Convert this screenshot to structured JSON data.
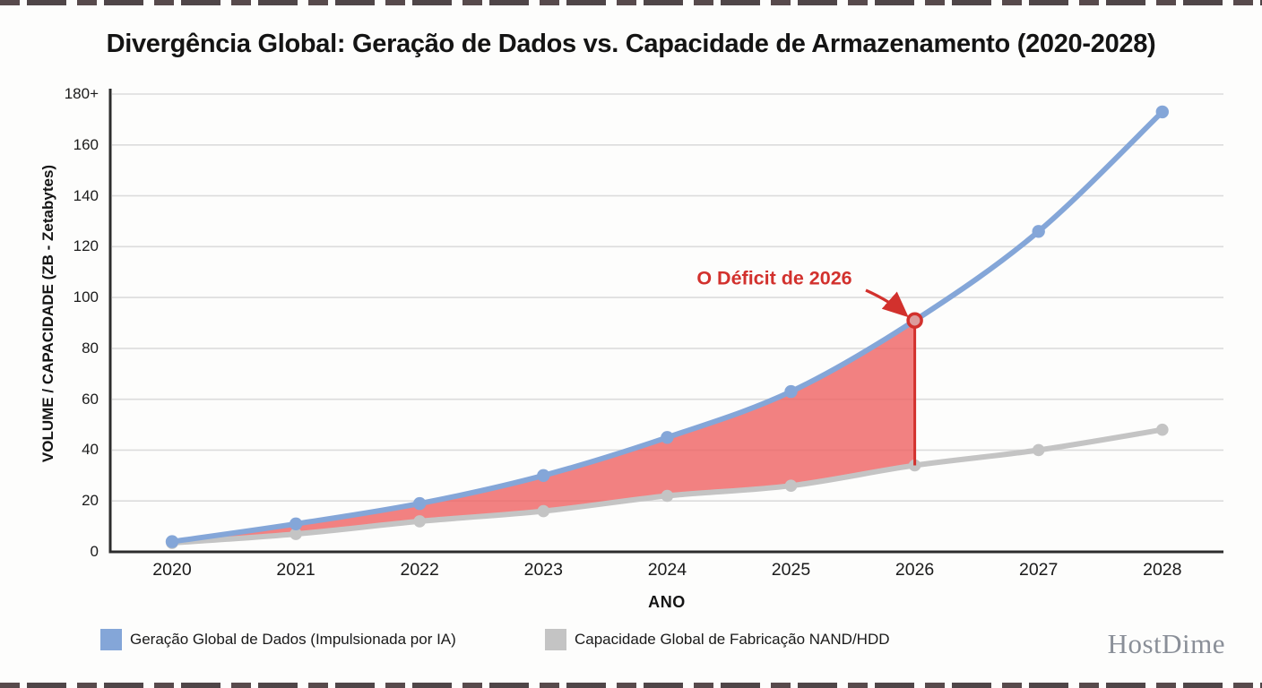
{
  "page": {
    "background": "#fdfdfc",
    "edge_dash_color": "#3c3134"
  },
  "chart_data": {
    "type": "line",
    "title": "Divergência Global: Geração de Dados vs. Capacidade de Armazenamento (2020-2028)",
    "xlabel": "ANO",
    "ylabel": "VOLUME / CAPACIDADE (ZB - Zetabytes)",
    "categories": [
      "2020",
      "2021",
      "2022",
      "2023",
      "2024",
      "2025",
      "2026",
      "2027",
      "2028"
    ],
    "y_ticks": [
      "0",
      "20",
      "40",
      "60",
      "80",
      "100",
      "120",
      "140",
      "160",
      "180+"
    ],
    "ylim": [
      0,
      180
    ],
    "grid": true,
    "legend_position": "bottom",
    "series": [
      {
        "name": "Geração Global de Dados (Impulsionada por IA)",
        "color": "#84a6d8",
        "values": [
          4,
          11,
          19,
          30,
          45,
          63,
          91,
          126,
          173
        ]
      },
      {
        "name": "Capacidade Global de Fabricação NAND/HDD",
        "color": "#c4c4c4",
        "values": [
          3.5,
          7,
          12,
          16,
          22,
          26,
          34,
          40,
          48
        ]
      }
    ],
    "deficit_area": {
      "label": "O Déficit de 2026",
      "from": "2020",
      "to": "2026",
      "fill": "#ef6262",
      "fill_opacity": 0.8,
      "accent": "#d2312d",
      "highlight_year": "2026",
      "highlight_values": {
        "generation": 91,
        "capacity": 34
      }
    },
    "colors": {
      "gridline": "#dcdcdc",
      "axis": "#2d2d2d",
      "text": "#1b1b1b"
    }
  },
  "footer": {
    "brand": "HostDime"
  }
}
